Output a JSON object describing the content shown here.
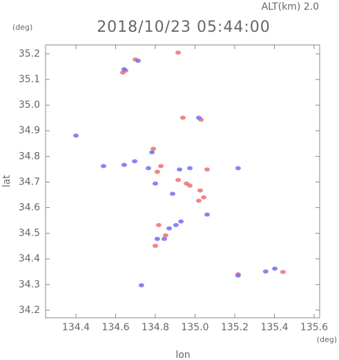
{
  "chart_data": {
    "type": "scatter",
    "title": "2018/10/23 05:44:00",
    "subtitle": "ALT(km) 2.0",
    "x_label": "lon",
    "y_label": "lat",
    "x_unit": "(deg)",
    "y_unit": "(deg)",
    "xlim": [
      134.247,
      135.628
    ],
    "ylim": [
      34.17,
      35.235
    ],
    "xticks": [
      134.4,
      134.6,
      134.8,
      {
        "value": 135,
        "label": "135.0"
      },
      135.2,
      135.4,
      135.6
    ],
    "yticks": [
      34.2,
      34.3,
      34.4,
      34.5,
      34.6,
      34.7,
      34.8,
      34.9,
      {
        "value": 35,
        "label": "35.0"
      },
      35.1,
      35.2
    ],
    "series": [
      {
        "color": "#f07070",
        "x": [
          134.65,
          134.636,
          134.699,
          134.915,
          134.939,
          135.03,
          134.79,
          134.81,
          134.828,
          134.915,
          134.957,
          134.974,
          135.026,
          135.061,
          135.019,
          135.044,
          134.817,
          134.852,
          135.443,
          135.217,
          134.8
        ],
        "values": [
          35.135,
          35.127,
          35.178,
          35.205,
          34.951,
          34.943,
          34.83,
          34.74,
          34.762,
          34.708,
          34.694,
          34.686,
          34.667,
          34.749,
          34.627,
          34.64,
          34.532,
          34.492,
          34.349,
          34.34,
          34.451
        ]
      },
      {
        "color": "#7070f0",
        "x": [
          134.643,
          134.713,
          135.019,
          134.783,
          134.765,
          134.643,
          134.696,
          134.539,
          134.8,
          134.922,
          134.974,
          134.887,
          134.87,
          134.904,
          134.929,
          134.845,
          134.81,
          135.217,
          135.356,
          135.402,
          134.73,
          135.061,
          135.217,
          134.4
        ],
        "values": [
          35.14,
          35.173,
          34.951,
          34.816,
          34.754,
          34.767,
          34.781,
          34.762,
          34.694,
          34.749,
          34.754,
          34.654,
          34.519,
          34.532,
          34.546,
          34.478,
          34.478,
          34.335,
          34.351,
          34.362,
          34.297,
          34.573,
          34.754,
          34.881
        ]
      }
    ]
  }
}
